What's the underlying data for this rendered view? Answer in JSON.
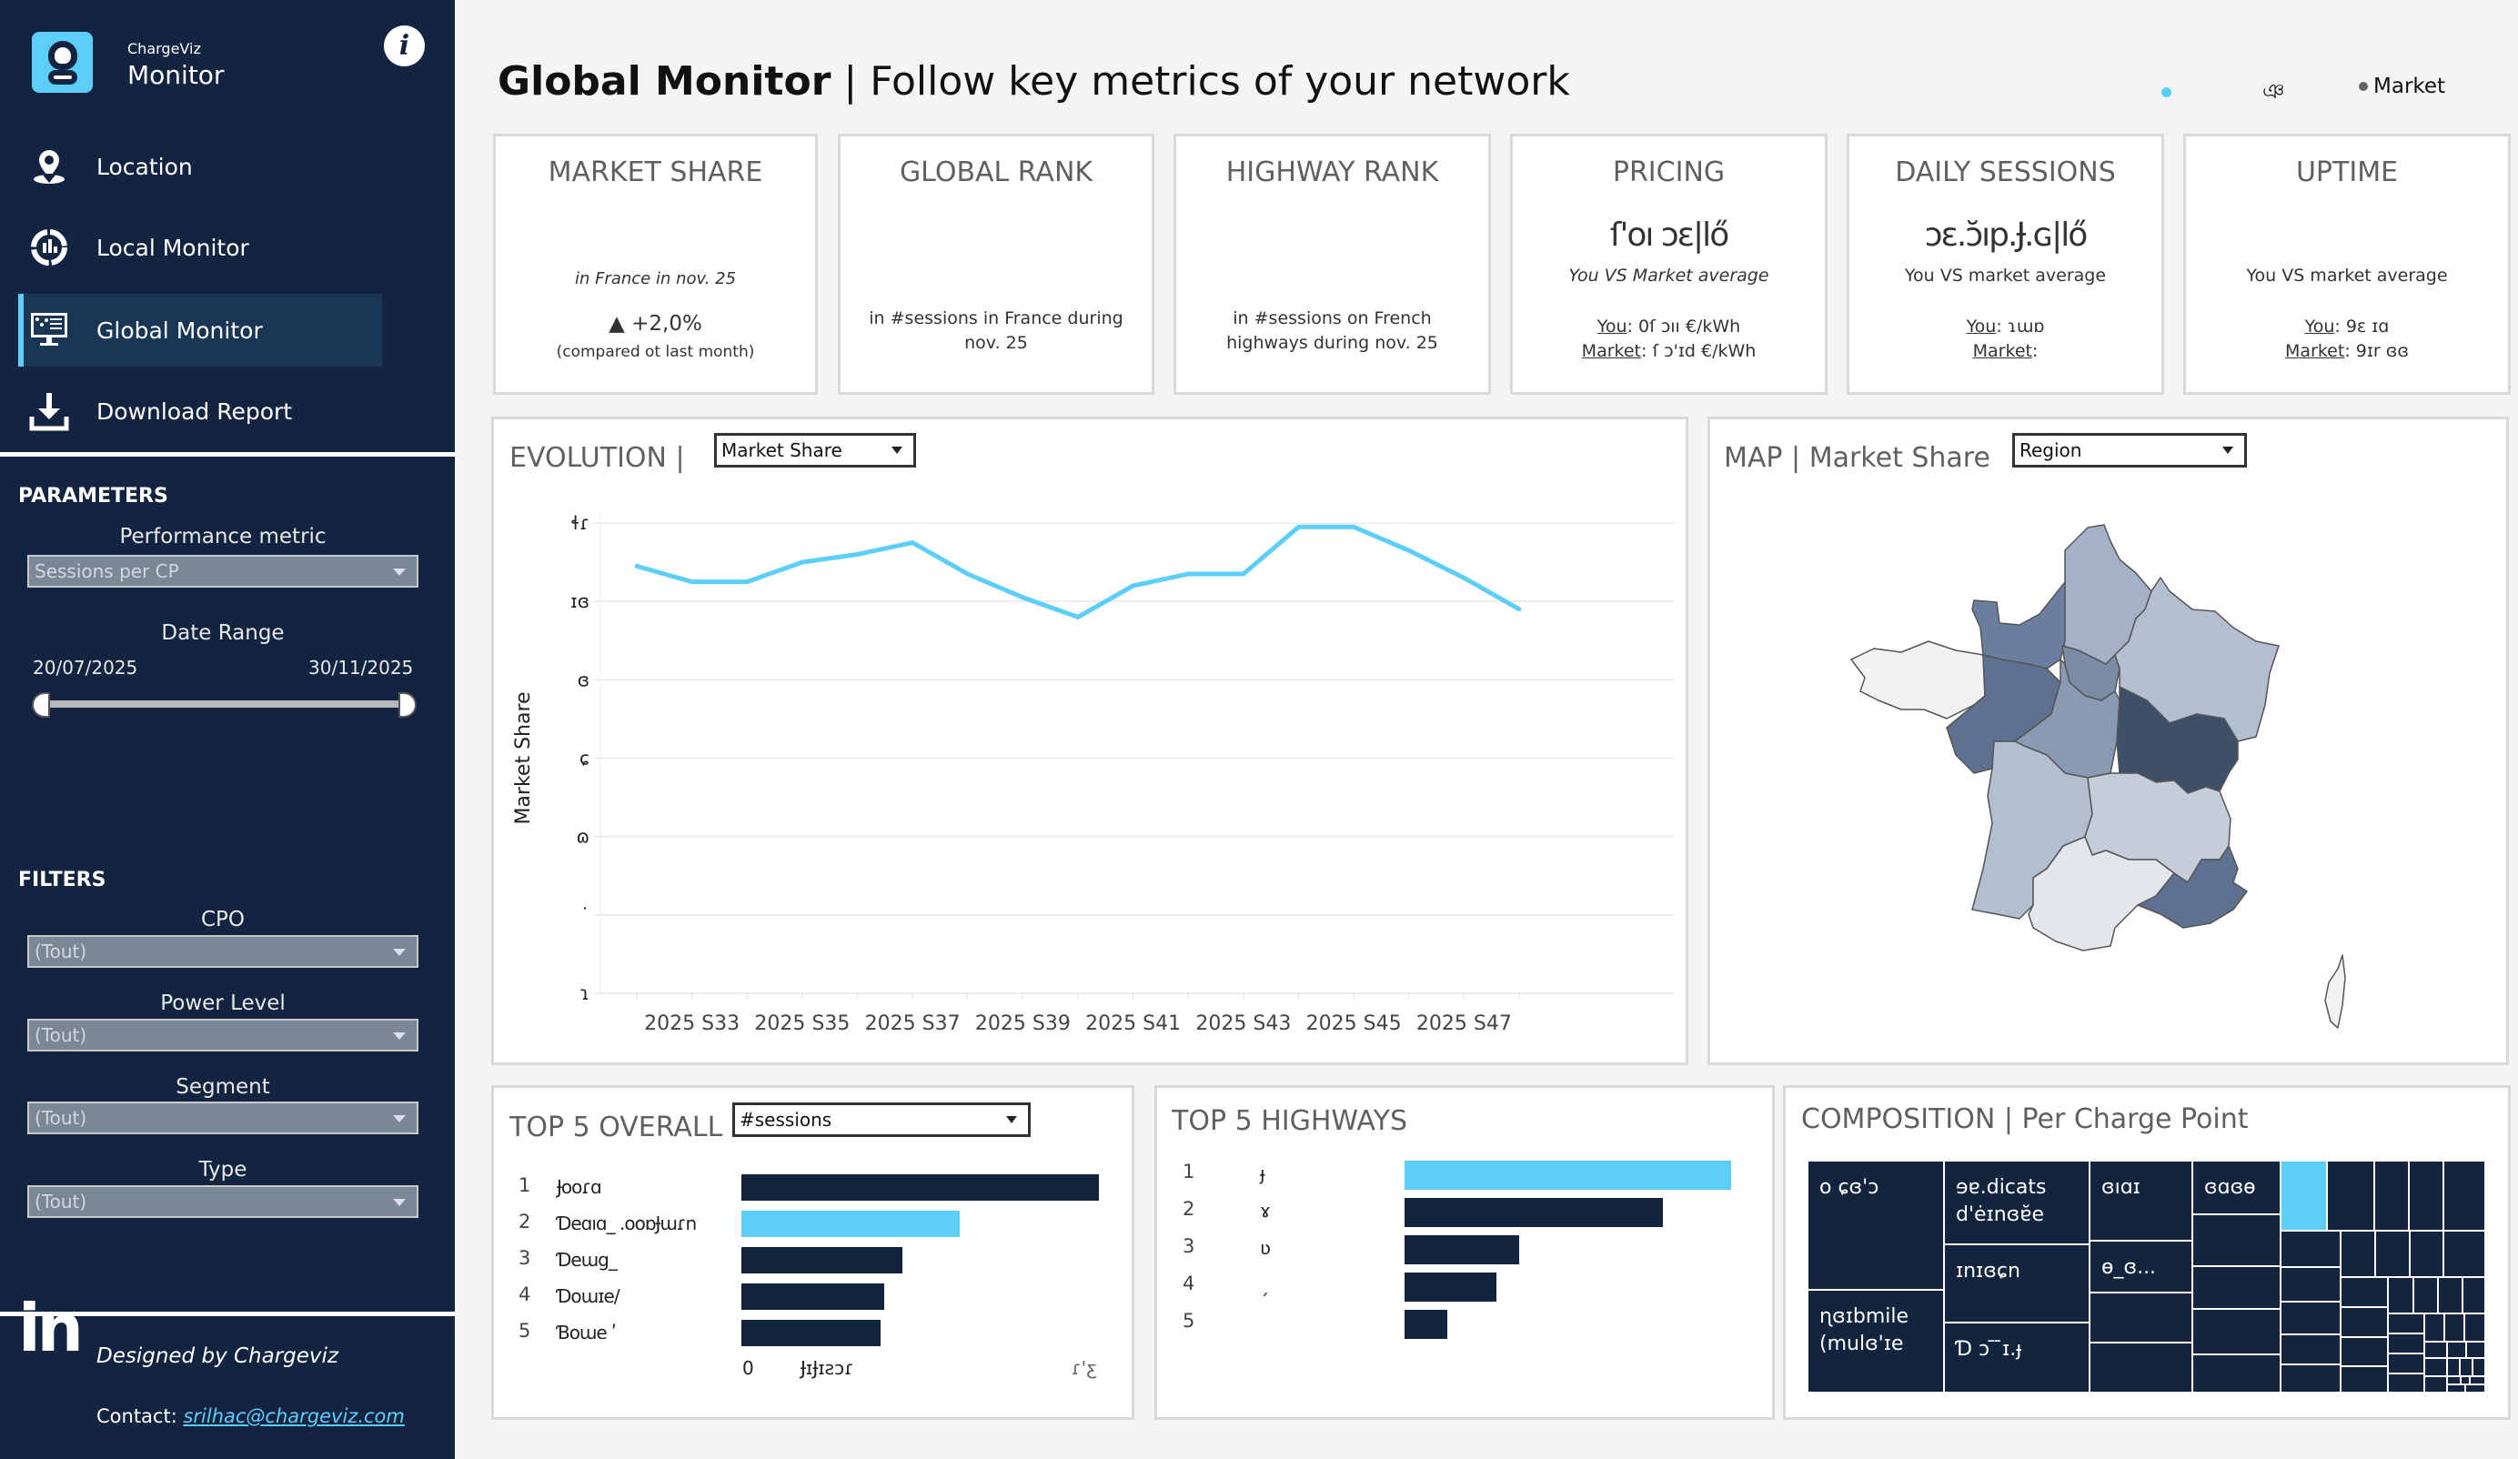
{
  "sidebar": {
    "brand_small": "ChargeViz",
    "brand_big": "Monitor",
    "info_icon": "i",
    "nav": [
      {
        "label": "Location",
        "icon": "location-pin-icon",
        "active": false
      },
      {
        "label": "Local Monitor",
        "icon": "gauge-chart-icon",
        "active": false
      },
      {
        "label": "Global Monitor",
        "icon": "monitor-chart-icon",
        "active": true
      },
      {
        "label": "Download Report",
        "icon": "download-icon",
        "active": false
      }
    ],
    "parameters": {
      "title": "PARAMETERS",
      "performance_metric_label": "Performance metric",
      "performance_metric_value": "Sessions per CP",
      "date_range_label": "Date Range",
      "date_start": "20/07/2025",
      "date_end": "30/11/2025"
    },
    "filters": {
      "title": "FILTERS",
      "items": [
        {
          "label": "CPO",
          "value": "(Tout)"
        },
        {
          "label": "Power Level",
          "value": "(Tout)"
        },
        {
          "label": "Segment",
          "value": "(Tout)"
        },
        {
          "label": "Type",
          "value": "(Tout)"
        }
      ]
    },
    "footer": {
      "designed_by": "Designed by Chargeviz",
      "contact_label": "Contact: ",
      "contact_email": "srilhac@chargeviz.com",
      "linkedin": "in"
    }
  },
  "header": {
    "title_bold": "Global Monitor",
    "separator": " | ",
    "subtitle": "Follow key metrics of your network",
    "legend": [
      {
        "label": "ঞ",
        "color": "#5ccefa"
      },
      {
        "label": "Market",
        "color": "#666666"
      }
    ]
  },
  "kpis": [
    {
      "title": "MARKET SHARE",
      "value": "",
      "line1": "in France in nov. 25",
      "delta": "+2,0%",
      "delta_note": "(compared ot last month)"
    },
    {
      "title": "GLOBAL RANK",
      "value": "",
      "line1": "in #sessions in France during",
      "line2": "nov. 25"
    },
    {
      "title": "HIGHWAY RANK",
      "value": "",
      "line1": "in #sessions on French",
      "line2": "highways during nov. 25"
    },
    {
      "title": "PRICING",
      "value": "ſ'oı ɔɛ|lő",
      "line1": "You VS Market average",
      "you_label": "You",
      "you_value": "0ſ ɔıı €/kWh",
      "market_label": "Market",
      "market_value": "ſ ɔ'ɪd €/kWh"
    },
    {
      "title": "DAILY SESSIONS",
      "value": "ɔɛ.ɔ̆ıp.Ɉ.ɢ|lő",
      "line1": "You VS market average",
      "you_label": "You",
      "you_value": "ɿɯɒ",
      "market_label": "Market",
      "market_value": ""
    },
    {
      "title": "UPTIME",
      "value": "",
      "line1": "You VS market average",
      "you_label": "You",
      "you_value": "9ɛ ɪɑ",
      "market_label": "Market",
      "market_value": "9ɪr ɞɞ"
    }
  ],
  "evolution": {
    "title": "EVOLUTION",
    "separator": "|",
    "metric_select": "Market Share"
  },
  "map": {
    "title": "MAP",
    "separator": "|",
    "subtitle": "Market Share",
    "level_select": "Region",
    "regions": [
      {
        "name": "Hauts-de-France",
        "shade": "#a4b1c6"
      },
      {
        "name": "Normandie",
        "shade": "#6a7f9f"
      },
      {
        "name": "Île-de-France",
        "shade": "#7a8ca6"
      },
      {
        "name": "Grand Est",
        "shade": "#b3bfd0"
      },
      {
        "name": "Bretagne",
        "shade": "#f2f2f2"
      },
      {
        "name": "Pays de la Loire",
        "shade": "#5e7190"
      },
      {
        "name": "Centre-Val de Loire",
        "shade": "#8a9ab3"
      },
      {
        "name": "Bourgogne-Franche-Comté",
        "shade": "#3e5068"
      },
      {
        "name": "Nouvelle-Aquitaine",
        "shade": "#b3bfd0"
      },
      {
        "name": "Auvergne-Rhône-Alpes",
        "shade": "#c5cdd9"
      },
      {
        "name": "Occitanie",
        "shade": "#e3e6ea"
      },
      {
        "name": "Provence-Alpes-Côte d'Azur",
        "shade": "#5e7190"
      },
      {
        "name": "Corse",
        "shade": "#f2f2f2"
      }
    ]
  },
  "top5_overall": {
    "title": "TOP 5 OVERALL",
    "metric_select": "#sessions",
    "axis_labels": [
      "0",
      "ɈɪɈɪƨɔɾ",
      "ɾ'ƹ"
    ],
    "items": [
      {
        "rank": "1",
        "name": "Ɉooɾɑ",
        "highlight": false
      },
      {
        "rank": "2",
        "name": "Ɗeɑıɑ_  .ooɒɈɯɾn",
        "highlight": true
      },
      {
        "rank": "3",
        "name": "Ɗeɯg_",
        "highlight": false
      },
      {
        "rank": "4",
        "name": "Ɗoɯɪe/",
        "highlight": false
      },
      {
        "rank": "5",
        "name": "Ɓoɯe  ʹ",
        "highlight": false
      }
    ]
  },
  "top5_highways": {
    "title": "TOP 5 HIGHWAYS",
    "items": [
      {
        "rank": "1",
        "name": "ɟ",
        "highlight": true
      },
      {
        "rank": "2",
        "name": "ɤ",
        "highlight": false
      },
      {
        "rank": "3",
        "name": "ʋ",
        "highlight": false
      },
      {
        "rank": "4",
        "name": "ˏ",
        "highlight": false
      },
      {
        "rank": "5",
        "name": "",
        "highlight": false
      }
    ]
  },
  "composition": {
    "title": "COMPOSITION",
    "separator": "|",
    "subtitle": "Per Charge Point",
    "labels": [
      "o ɕɞ'ɔ",
      "ɘɐ.dicats d'ėɪnɞɐ̆e",
      "ɪnɪɞɕn",
      "Ɗ ɔ ̄ ̄ɪ.ɟ",
      "ɳɞɪbmile (mulɞ'ɪe",
      "ɞıɑɪ",
      "ɵ_ɞ...",
      "ɞɑɞɵ"
    ],
    "highlight_color": "#5ccefa"
  },
  "chart_data": [
    {
      "type": "line",
      "title": "EVOLUTION | Market Share",
      "xlabel": "",
      "ylabel": "Market Share",
      "x": [
        "2025 S32",
        "2025 S33",
        "2025 S34",
        "2025 S35",
        "2025 S36",
        "2025 S37",
        "2025 S38",
        "2025 S39",
        "2025 S40",
        "2025 S41",
        "2025 S42",
        "2025 S43",
        "2025 S44",
        "2025 S45",
        "2025 S46",
        "2025 S47",
        "2025 S48"
      ],
      "x_tick_labels": [
        "2025 S33",
        "2025 S35",
        "2025 S37",
        "2025 S39",
        "2025 S41",
        "2025 S43",
        "2025 S45",
        "2025 S47"
      ],
      "y_tick_labels": [
        "ɬɾ",
        "ɪɞ",
        "ɞ",
        "ɕ",
        "ɷ",
        "˙",
        "ɿ"
      ],
      "ylim": [
        0,
        12
      ],
      "grid": true,
      "series": [
        {
          "name": "You",
          "color": "#5ccefa",
          "values": [
            10.9,
            10.5,
            10.5,
            11.0,
            11.2,
            11.5,
            10.7,
            10.1,
            9.6,
            10.4,
            10.7,
            10.7,
            11.9,
            11.9,
            11.3,
            10.6,
            9.8
          ]
        }
      ]
    },
    {
      "type": "bar",
      "title": "TOP 5 OVERALL",
      "orientation": "horizontal",
      "categories": [
        "1",
        "2",
        "3",
        "4",
        "5"
      ],
      "values": [
        1.0,
        0.61,
        0.45,
        0.4,
        0.39
      ],
      "value_units": "relative to max"
    },
    {
      "type": "bar",
      "title": "TOP 5 HIGHWAYS",
      "orientation": "horizontal",
      "categories": [
        "1",
        "2",
        "3",
        "4",
        "5"
      ],
      "values": [
        1.0,
        0.79,
        0.35,
        0.28,
        0.13
      ],
      "value_units": "relative to max"
    }
  ]
}
